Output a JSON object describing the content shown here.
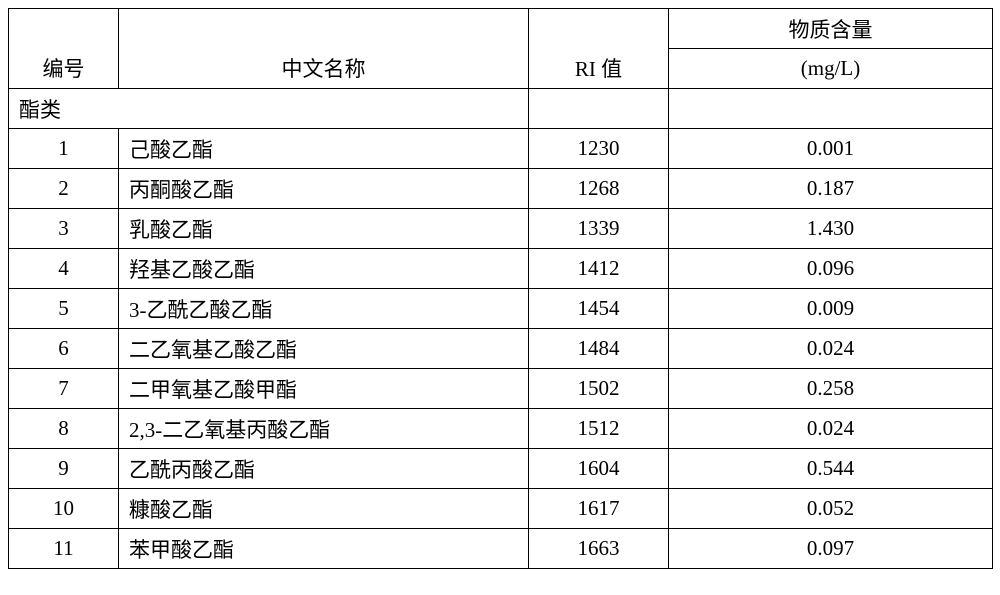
{
  "table": {
    "headers": {
      "col1": "编号",
      "col2": "中文名称",
      "col3": "RI 值",
      "col4_top": "物质含量",
      "col4_bot": "(mg/L)"
    },
    "category": "酯类",
    "rows": [
      {
        "num": "1",
        "name": "己酸乙酯",
        "ri": "1230",
        "val": "0.001"
      },
      {
        "num": "2",
        "name": "丙酮酸乙酯",
        "ri": "1268",
        "val": "0.187"
      },
      {
        "num": "3",
        "name": "乳酸乙酯",
        "ri": "1339",
        "val": "1.430"
      },
      {
        "num": "4",
        "name": "羟基乙酸乙酯",
        "ri": "1412",
        "val": "0.096"
      },
      {
        "num": "5",
        "name": "3-乙酰乙酸乙酯",
        "ri": "1454",
        "val": "0.009"
      },
      {
        "num": "6",
        "name": "二乙氧基乙酸乙酯",
        "ri": "1484",
        "val": "0.024"
      },
      {
        "num": "7",
        "name": "二甲氧基乙酸甲酯",
        "ri": "1502",
        "val": "0.258"
      },
      {
        "num": "8",
        "name": "2,3-二乙氧基丙酸乙酯",
        "ri": "1512",
        "val": "0.024"
      },
      {
        "num": "9",
        "name": "乙酰丙酸乙酯",
        "ri": "1604",
        "val": "0.544"
      },
      {
        "num": "10",
        "name": "糠酸乙酯",
        "ri": "1617",
        "val": "0.052"
      },
      {
        "num": "11",
        "name": "苯甲酸乙酯",
        "ri": "1663",
        "val": "0.097"
      }
    ]
  }
}
